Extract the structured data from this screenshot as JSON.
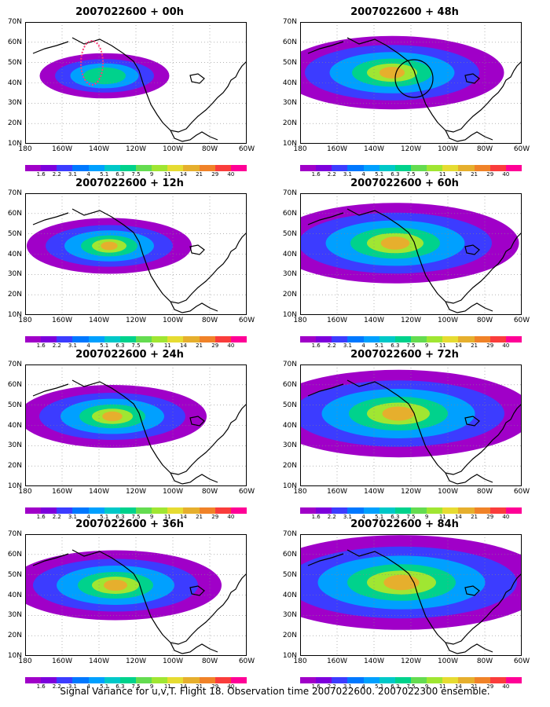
{
  "panels": [
    {
      "title": "2007022600 + 00h",
      "level": 0.15
    },
    {
      "title": "2007022600 + 48h",
      "level": 0.55
    },
    {
      "title": "2007022600 + 12h",
      "level": 0.3
    },
    {
      "title": "2007022600 + 60h",
      "level": 0.65
    },
    {
      "title": "2007022600 + 24h",
      "level": 0.4
    },
    {
      "title": "2007022600 + 72h",
      "level": 0.75
    },
    {
      "title": "2007022600 + 36h",
      "level": 0.5
    },
    {
      "title": "2007022600 + 84h",
      "level": 0.85
    }
  ],
  "lat_labels": [
    "70N",
    "60N",
    "50N",
    "40N",
    "30N",
    "20N",
    "10N"
  ],
  "lon_labels": [
    "180",
    "160W",
    "140W",
    "120W",
    "100W",
    "80W",
    "60W"
  ],
  "colorbar": {
    "labels": [
      "1.6",
      "2.2",
      "3.1",
      "4",
      "5.1",
      "6.3",
      "7.5",
      "9",
      "11",
      "14",
      "21",
      "29",
      "40"
    ],
    "colors": [
      "#a000c8",
      "#7d00dc",
      "#3c3cff",
      "#0078ff",
      "#00a0ff",
      "#00c8c8",
      "#00d28c",
      "#64dc50",
      "#a0e632",
      "#e6dc32",
      "#e6af2d",
      "#f08228",
      "#fa3c3c",
      "#ff0096"
    ]
  },
  "caption": "Signal Variance for u,v,T. Flight 18. Observation time 2007022600. 2007022300 ensemble."
}
